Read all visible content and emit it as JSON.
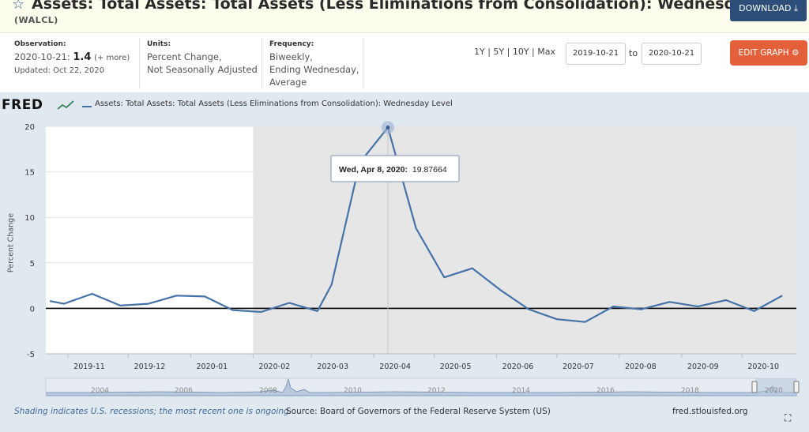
{
  "header": {
    "star_icon": "star-icon",
    "title": "Assets: Total Assets: Total Assets (Less Eliminations from Consolidation): Wednesday Level",
    "series_id": "(WALCL)",
    "download_label": "DOWNLOAD ⤓"
  },
  "meta": {
    "observation_label": "Observation:",
    "observation_date": "2020-10-21:",
    "observation_value": "1.4",
    "observation_more": "(+ more)",
    "updated": "Updated: Oct 22, 2020",
    "units_label": "Units:",
    "units_line1": "Percent Change,",
    "units_line2": "Not Seasonally Adjusted",
    "frequency_label": "Frequency:",
    "frequency_line1": "Biweekly,",
    "frequency_line2": "Ending Wednesday,",
    "frequency_line3": "Average"
  },
  "controls": {
    "ranges": [
      "1Y",
      "5Y",
      "10Y",
      "Max"
    ],
    "start_date": "2019-10-21",
    "to_label": "to",
    "end_date": "2020-10-21",
    "edit_label": "EDIT GRAPH ⚙"
  },
  "graph": {
    "logo": "FRED",
    "legend": "Assets: Total Assets: Total Assets (Less Eliminations from Consolidation): Wednesday Level",
    "ylabel": "Percent Change",
    "tooltip_date": "Wed, Apr 8, 2020:",
    "tooltip_value": "19.87664"
  },
  "footer": {
    "note": "Shading indicates U.S. recessions; the most recent one is ongoing.",
    "source": "Source: Board of Governors of the Federal Reserve System (US)",
    "site": "fred.stlouisfed.org",
    "expand_icon": "expand-icon"
  },
  "colors": {
    "line": "#4572a7",
    "recession": "#e6e6e6",
    "zero_line": "#000000",
    "accent": "#e4603a"
  },
  "chart_data": {
    "type": "line",
    "title": "Assets: Total Assets: Total Assets (Less Eliminations from Consolidation): Wednesday Level",
    "ylabel": "Percent Change",
    "ylim": [
      -5,
      20
    ],
    "yticks": [
      20,
      15,
      10,
      5,
      0,
      -5
    ],
    "xticks": [
      "2019-11",
      "2019-12",
      "2020-01",
      "2020-02",
      "2020-03",
      "2020-04",
      "2020-05",
      "2020-06",
      "2020-07",
      "2020-08",
      "2020-09",
      "2020-10"
    ],
    "recession_start": "2020-02-01",
    "series": [
      {
        "name": "Assets: Total Assets: Total Assets (Less Eliminations from Consolidation): Wednesday Level",
        "x": [
          "2019-10-23",
          "2019-10-30",
          "2019-11-13",
          "2019-11-27",
          "2019-12-11",
          "2019-12-25",
          "2020-01-08",
          "2020-01-22",
          "2020-02-05",
          "2020-02-19",
          "2020-03-04",
          "2020-03-11",
          "2020-03-25",
          "2020-04-08",
          "2020-04-22",
          "2020-05-06",
          "2020-05-20",
          "2020-06-03",
          "2020-06-17",
          "2020-07-01",
          "2020-07-15",
          "2020-07-29",
          "2020-08-12",
          "2020-08-26",
          "2020-09-09",
          "2020-09-23",
          "2020-10-07",
          "2020-10-21"
        ],
        "values": [
          0.8,
          0.5,
          1.6,
          0.3,
          0.5,
          1.4,
          1.3,
          -0.2,
          -0.4,
          0.6,
          -0.3,
          2.6,
          16.0,
          19.87664,
          8.8,
          3.4,
          4.4,
          2.0,
          -0.1,
          -1.2,
          -1.5,
          0.2,
          -0.1,
          0.7,
          0.2,
          0.9,
          -0.3,
          1.4
        ]
      }
    ],
    "highlight": {
      "x": "2020-04-08",
      "value": 19.87664
    }
  }
}
